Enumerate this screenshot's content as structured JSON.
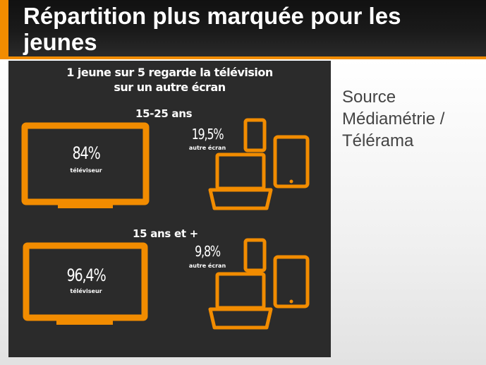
{
  "slide": {
    "title": "Répartition plus marquée pour les jeunes"
  },
  "infographic": {
    "headline_line1": "1 jeune sur 5 regarde la télévision",
    "headline_line2": "sur un autre écran",
    "groups": [
      {
        "label": "15-25 ans",
        "tv_percent": "84%",
        "tv_label": "téléviseur",
        "other_percent": "19,5%",
        "other_label": "autre écran"
      },
      {
        "label": "15 ans et +",
        "tv_percent": "96,4%",
        "tv_label": "téléviseur",
        "other_percent": "9,8%",
        "other_label": "autre écran"
      }
    ]
  },
  "source": {
    "line1": "Source",
    "line2": "Médiamétrie /",
    "line3": "Télérama"
  },
  "colors": {
    "accent": "#f28c00",
    "infographic_bg": "#2b2b2b",
    "title_bg": "#111111"
  },
  "icons": [
    "tv-icon",
    "phone-icon",
    "tablet-icon",
    "laptop-icon"
  ]
}
